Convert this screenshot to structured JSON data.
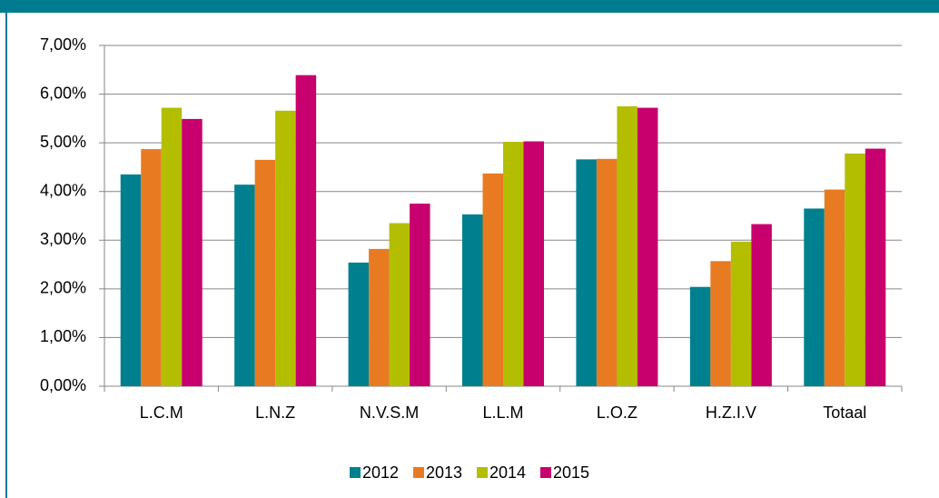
{
  "chart_data": {
    "type": "bar",
    "categories": [
      "L.C.M",
      "L.N.Z",
      "N.V.S.M",
      "L.L.M",
      "L.O.Z",
      "H.Z.I.V",
      "Totaal"
    ],
    "series": [
      {
        "name": "2012",
        "color": "#00808f",
        "values": [
          4.35,
          4.14,
          2.54,
          3.53,
          4.66,
          2.04,
          3.65
        ]
      },
      {
        "name": "2013",
        "color": "#e87b22",
        "values": [
          4.87,
          4.65,
          2.82,
          4.37,
          4.67,
          2.57,
          4.04
        ]
      },
      {
        "name": "2014",
        "color": "#b3be00",
        "values": [
          5.72,
          5.66,
          3.35,
          5.02,
          5.75,
          2.97,
          4.78
        ]
      },
      {
        "name": "2015",
        "color": "#c8006e",
        "values": [
          5.49,
          6.39,
          3.75,
          5.03,
          5.72,
          3.33,
          4.88
        ]
      }
    ],
    "ylim": [
      0,
      7
    ],
    "yticks": [
      {
        "value": 0,
        "label": "0,00%"
      },
      {
        "value": 1,
        "label": "1,00%"
      },
      {
        "value": 2,
        "label": "2,00%"
      },
      {
        "value": 3,
        "label": "3,00%"
      },
      {
        "value": 4,
        "label": "4,00%"
      },
      {
        "value": 5,
        "label": "5,00%"
      },
      {
        "value": 6,
        "label": "6,00%"
      },
      {
        "value": 7,
        "label": "7,00%"
      }
    ],
    "grid": true,
    "legend": "bottom"
  }
}
